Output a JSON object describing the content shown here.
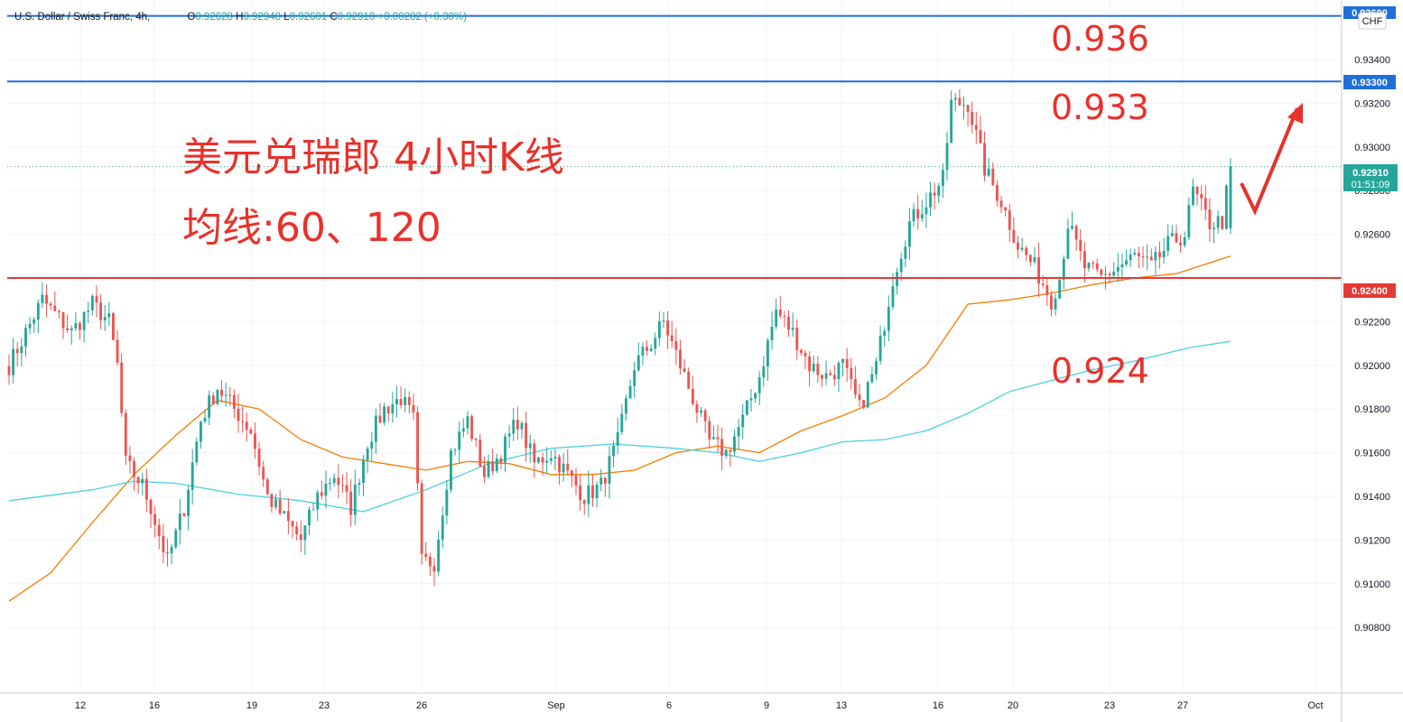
{
  "header": {
    "symbol": "U.S. Dollar / Swiss Franc, 4h,",
    "open_label": "O",
    "open": "0.92628",
    "high_label": "H",
    "high": "0.92948",
    "low_label": "L",
    "low": "0.92601",
    "close_label": "C",
    "close": "0.92910",
    "change": "+0.00282 (+0.30%)"
  },
  "currency_label": "CHF",
  "colors": {
    "up": "#26a69a",
    "down": "#ef5350",
    "ma60": "#f57c00",
    "ma120": "#4dd0e1",
    "resistance_line": "#1e6fd9",
    "support_line": "#e53935",
    "annotation": "#e8312a"
  },
  "annotations": {
    "title": "美元兑瑞郎 4小时K线",
    "subtitle": "均线:60、120",
    "level_936": "0.936",
    "level_933": "0.933",
    "level_924": "0.924"
  },
  "price_tags": {
    "current_price": "0.92910",
    "countdown": "01:51:09",
    "line_933": "0.93300",
    "line_924": "0.92400",
    "line_936": "0.93600"
  },
  "chart_data": {
    "type": "candlestick",
    "timeframe": "4h",
    "y_axis": {
      "ticks": [
        "0.93400",
        "0.93200",
        "0.93000",
        "0.92800",
        "0.92600",
        "0.92200",
        "0.92000",
        "0.91800",
        "0.91600",
        "0.91400",
        "0.91200",
        "0.91000",
        "0.90800"
      ],
      "range": [
        0.9065,
        0.9367
      ]
    },
    "x_axis": {
      "labels": [
        "12",
        "16",
        "19",
        "23",
        "26",
        "Sep",
        "6",
        "9",
        "13",
        "16",
        "20",
        "23",
        "27",
        "Oct"
      ]
    },
    "horizontal_lines": [
      {
        "value": 0.936,
        "color": "#1e6fd9"
      },
      {
        "value": 0.933,
        "color": "#1e6fd9"
      },
      {
        "value": 0.924,
        "color": "#e53935"
      },
      {
        "value": 0.9291,
        "color": "#26a69a",
        "style": "dotted"
      }
    ],
    "anchors": [
      [
        0,
        0.92
      ],
      [
        8,
        0.923
      ],
      [
        15,
        0.9215
      ],
      [
        20,
        0.9228
      ],
      [
        24,
        0.922
      ],
      [
        26,
        0.92
      ],
      [
        28,
        0.9155
      ],
      [
        32,
        0.9145
      ],
      [
        34,
        0.9135
      ],
      [
        38,
        0.911
      ],
      [
        42,
        0.9135
      ],
      [
        46,
        0.9175
      ],
      [
        50,
        0.919
      ],
      [
        54,
        0.918
      ],
      [
        58,
        0.917
      ],
      [
        62,
        0.914
      ],
      [
        66,
        0.913
      ],
      [
        70,
        0.912
      ],
      [
        74,
        0.914
      ],
      [
        78,
        0.915
      ],
      [
        82,
        0.9135
      ],
      [
        86,
        0.9165
      ],
      [
        90,
        0.918
      ],
      [
        94,
        0.9185
      ],
      [
        97,
        0.9175
      ],
      [
        99,
        0.911
      ],
      [
        102,
        0.911
      ],
      [
        106,
        0.916
      ],
      [
        110,
        0.9175
      ],
      [
        114,
        0.915
      ],
      [
        118,
        0.916
      ],
      [
        122,
        0.9175
      ],
      [
        126,
        0.9155
      ],
      [
        130,
        0.916
      ],
      [
        134,
        0.915
      ],
      [
        138,
        0.914
      ],
      [
        142,
        0.9145
      ],
      [
        146,
        0.9165
      ],
      [
        150,
        0.92
      ],
      [
        154,
        0.921
      ],
      [
        157,
        0.922
      ],
      [
        160,
        0.9205
      ],
      [
        164,
        0.9185
      ],
      [
        168,
        0.9165
      ],
      [
        172,
        0.916
      ],
      [
        176,
        0.9175
      ],
      [
        180,
        0.9195
      ],
      [
        184,
        0.9225
      ],
      [
        188,
        0.9215
      ],
      [
        192,
        0.92
      ],
      [
        196,
        0.9195
      ],
      [
        200,
        0.92
      ],
      [
        204,
        0.918
      ],
      [
        208,
        0.92
      ],
      [
        212,
        0.924
      ],
      [
        216,
        0.9265
      ],
      [
        220,
        0.9275
      ],
      [
        224,
        0.9285
      ],
      [
        226,
        0.932
      ],
      [
        230,
        0.932
      ],
      [
        234,
        0.929
      ],
      [
        238,
        0.9275
      ],
      [
        242,
        0.9255
      ],
      [
        246,
        0.9245
      ],
      [
        250,
        0.923
      ],
      [
        252,
        0.924
      ],
      [
        254,
        0.9265
      ],
      [
        258,
        0.9245
      ],
      [
        262,
        0.924
      ],
      [
        266,
        0.9245
      ],
      [
        270,
        0.925
      ],
      [
        274,
        0.9245
      ],
      [
        278,
        0.9255
      ],
      [
        282,
        0.926
      ],
      [
        284,
        0.928
      ],
      [
        288,
        0.9265
      ],
      [
        291,
        0.9266
      ],
      [
        293,
        0.9291
      ]
    ],
    "moving_averages": [
      {
        "period": 60,
        "color": "#f57c00",
        "points": [
          [
            0,
            0.9092
          ],
          [
            10,
            0.9105
          ],
          [
            20,
            0.9128
          ],
          [
            30,
            0.915
          ],
          [
            40,
            0.9168
          ],
          [
            50,
            0.9184
          ],
          [
            60,
            0.918
          ],
          [
            70,
            0.9166
          ],
          [
            80,
            0.9158
          ],
          [
            90,
            0.9155
          ],
          [
            100,
            0.9152
          ],
          [
            110,
            0.9156
          ],
          [
            120,
            0.9155
          ],
          [
            130,
            0.915
          ],
          [
            140,
            0.915
          ],
          [
            150,
            0.9152
          ],
          [
            160,
            0.916
          ],
          [
            170,
            0.9163
          ],
          [
            180,
            0.916
          ],
          [
            190,
            0.917
          ],
          [
            200,
            0.9177
          ],
          [
            210,
            0.9185
          ],
          [
            220,
            0.92
          ],
          [
            230,
            0.9228
          ],
          [
            240,
            0.923
          ],
          [
            250,
            0.9233
          ],
          [
            260,
            0.9237
          ],
          [
            270,
            0.924
          ],
          [
            280,
            0.9242
          ],
          [
            293,
            0.925
          ]
        ]
      },
      {
        "period": 120,
        "color": "#4dd0e1",
        "points": [
          [
            0,
            0.9138
          ],
          [
            20,
            0.9143
          ],
          [
            30,
            0.9147
          ],
          [
            40,
            0.9146
          ],
          [
            55,
            0.9141
          ],
          [
            70,
            0.9138
          ],
          [
            85,
            0.9133
          ],
          [
            100,
            0.9143
          ],
          [
            115,
            0.9155
          ],
          [
            130,
            0.9162
          ],
          [
            145,
            0.9164
          ],
          [
            160,
            0.9162
          ],
          [
            170,
            0.916
          ],
          [
            180,
            0.9156
          ],
          [
            190,
            0.916
          ],
          [
            200,
            0.9165
          ],
          [
            210,
            0.9166
          ],
          [
            220,
            0.917
          ],
          [
            230,
            0.9178
          ],
          [
            240,
            0.9188
          ],
          [
            250,
            0.9193
          ],
          [
            260,
            0.9198
          ],
          [
            270,
            0.9202
          ],
          [
            283,
            0.9208
          ],
          [
            293,
            0.9211
          ]
        ]
      }
    ]
  }
}
